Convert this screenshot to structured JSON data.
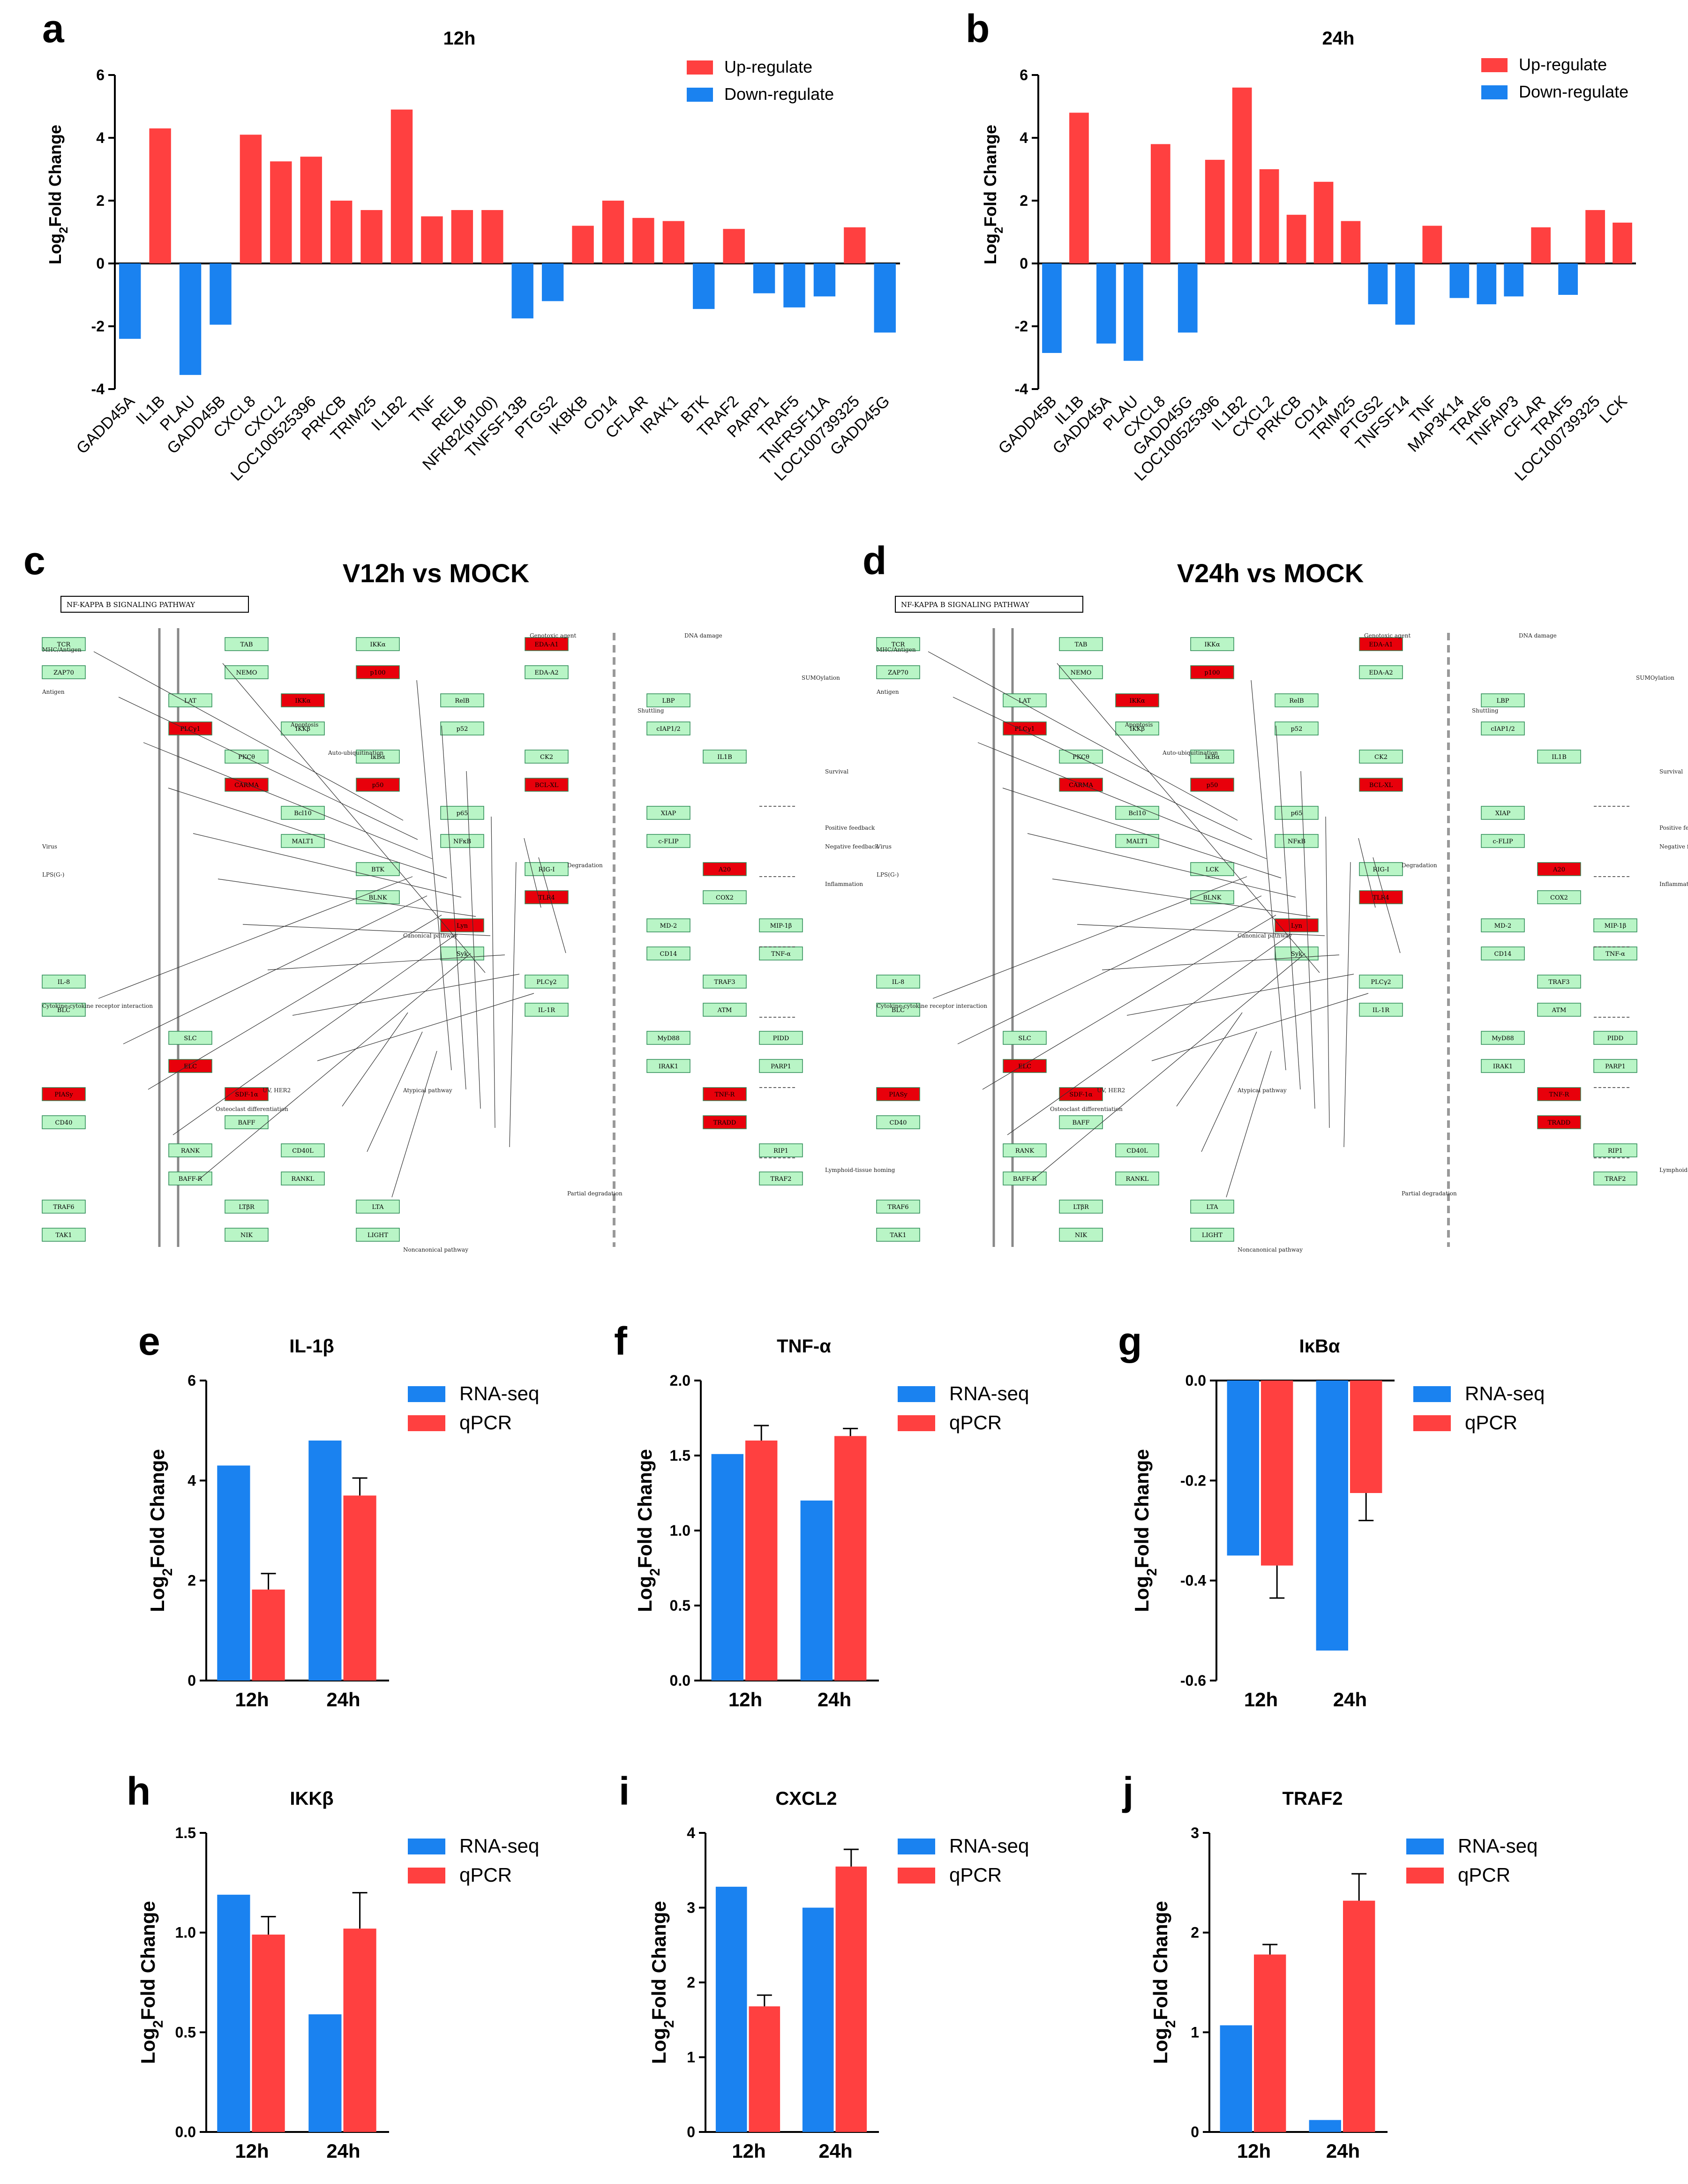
{
  "colors": {
    "up": "#ff4040",
    "down": "#1a82f0",
    "rnaseq": "#1a82f0",
    "qpcr": "#ff4040",
    "node_fill": "#b9f5c6",
    "node_hit": "#e8000b",
    "node_stroke": "#2e8b57"
  },
  "panels": {
    "a": "a",
    "b": "b",
    "c": "c",
    "d": "d",
    "e": "e",
    "f": "f",
    "g": "g",
    "h": "h",
    "i": "i",
    "j": "j"
  },
  "chart_data": [
    {
      "id": "a",
      "type": "bar",
      "title": "12h",
      "ylabel": "Log2Fold Change",
      "ylabel_base": "Log",
      "ylabel_sub": "2",
      "ylabel_rest": "Fold Change",
      "ylim": [
        -4,
        6
      ],
      "yticks": [
        -4,
        -2,
        0,
        2,
        4,
        6
      ],
      "legend": [
        "Up-regulate",
        "Down-regulate"
      ],
      "legend_position": "top-right",
      "categories": [
        "GADD45A",
        "IL1B",
        "PLAU",
        "GADD45B",
        "CXCL8",
        "CXCL2",
        "LOC100525396",
        "PRKCB",
        "TRIM25",
        "IL1B2",
        "TNF",
        "RELB",
        "NFKB2(p100)",
        "TNFSF13B",
        "PTGS2",
        "IKBKB",
        "CD14",
        "CFLAR",
        "IRAK1",
        "BTK",
        "TRAF2",
        "PARP1",
        "TRAF5",
        "TNFRSF11A",
        "LOC100739325",
        "GADD45G"
      ],
      "values": [
        -2.4,
        4.3,
        -3.55,
        -1.95,
        4.1,
        3.25,
        3.4,
        2.0,
        1.7,
        4.9,
        1.5,
        1.7,
        1.7,
        -1.75,
        -1.2,
        1.2,
        2.0,
        1.45,
        1.35,
        -1.45,
        1.1,
        -0.95,
        -1.4,
        -1.05,
        1.15,
        -2.2
      ]
    },
    {
      "id": "b",
      "type": "bar",
      "title": "24h",
      "ylabel": "Log2Fold Change",
      "ylabel_base": "Log",
      "ylabel_sub": "2",
      "ylabel_rest": "Fold Change",
      "ylim": [
        -4,
        6
      ],
      "yticks": [
        -4,
        -2,
        0,
        2,
        4,
        6
      ],
      "legend": [
        "Up-regulate",
        "Down-regulate"
      ],
      "legend_position": "top-right",
      "categories": [
        "GADD45B",
        "IL1B",
        "GADD45A",
        "PLAU",
        "CXCL8",
        "GADD45G",
        "LOC100525396",
        "IL1B2",
        "CXCL2",
        "PRKCB",
        "CD14",
        "TRIM25",
        "PTGS2",
        "TNFSF14",
        "TNF",
        "MAP3K14",
        "TRAF6",
        "TNFAIP3",
        "CFLAR",
        "TRAF5",
        "LOC100739325",
        "LCK"
      ],
      "values": [
        -2.85,
        4.8,
        -2.55,
        -3.1,
        3.8,
        -2.2,
        3.3,
        5.6,
        3.0,
        1.55,
        2.6,
        1.35,
        -1.3,
        -1.95,
        1.2,
        -1.1,
        -1.3,
        -1.05,
        1.15,
        -1.0,
        1.7,
        1.3
      ]
    },
    {
      "id": "e",
      "type": "bar",
      "title": "IL-1β",
      "ylabel": "Log2Fold Change",
      "ylabel_base": "Log",
      "ylabel_sub": "2",
      "ylabel_rest": "Fold Change",
      "ylim": [
        0,
        6
      ],
      "yticks": [
        "0",
        "2",
        "4",
        "6"
      ],
      "ytick_values": [
        0,
        2,
        4,
        6
      ],
      "categories": [
        "12h",
        "24h"
      ],
      "legend_position": "top-right",
      "series": [
        {
          "name": "RNA-seq",
          "values": [
            4.3,
            4.8
          ]
        },
        {
          "name": "qPCR",
          "values": [
            1.82,
            3.7
          ],
          "errors": [
            0.32,
            0.35
          ]
        }
      ]
    },
    {
      "id": "f",
      "type": "bar",
      "title": "TNF-α",
      "ylabel": "Log2Fold Change",
      "ylabel_base": "Log",
      "ylabel_sub": "2",
      "ylabel_rest": "Fold Change",
      "ylim": [
        0,
        2
      ],
      "yticks": [
        "0.0",
        "0.5",
        "1.0",
        "1.5",
        "2.0"
      ],
      "ytick_values": [
        0,
        0.5,
        1,
        1.5,
        2
      ],
      "categories": [
        "12h",
        "24h"
      ],
      "legend_position": "top-right",
      "series": [
        {
          "name": "RNA-seq",
          "values": [
            1.51,
            1.2
          ]
        },
        {
          "name": "qPCR",
          "values": [
            1.6,
            1.63
          ],
          "errors": [
            0.1,
            0.05
          ]
        }
      ]
    },
    {
      "id": "g",
      "type": "bar",
      "title": "IκBα",
      "ylabel": "Log2Fold Change",
      "ylabel_base": "Log",
      "ylabel_sub": "2",
      "ylabel_rest": "Fold Change",
      "ylim": [
        -0.6,
        0
      ],
      "yticks": [
        "0.0",
        "-0.2",
        "-0.4",
        "-0.6"
      ],
      "ytick_values": [
        0,
        -0.2,
        -0.4,
        -0.6
      ],
      "categories": [
        "12h",
        "24h"
      ],
      "legend_position": "top-right",
      "series": [
        {
          "name": "RNA-seq",
          "values": [
            -0.35,
            -0.54
          ]
        },
        {
          "name": "qPCR",
          "values": [
            -0.37,
            -0.225
          ],
          "errors": [
            0.065,
            0.055
          ]
        }
      ]
    },
    {
      "id": "h",
      "type": "bar",
      "title": "IKKβ",
      "ylabel": "Log2Fold Change",
      "ylabel_base": "Log",
      "ylabel_sub": "2",
      "ylabel_rest": "Fold Change",
      "ylim": [
        0,
        1.5
      ],
      "yticks": [
        "0.0",
        "0.5",
        "1.0",
        "1.5"
      ],
      "ytick_values": [
        0,
        0.5,
        1,
        1.5
      ],
      "categories": [
        "12h",
        "24h"
      ],
      "legend_position": "top-right",
      "series": [
        {
          "name": "RNA-seq",
          "values": [
            1.19,
            0.59
          ]
        },
        {
          "name": "qPCR",
          "values": [
            0.99,
            1.02
          ],
          "errors": [
            0.09,
            0.18
          ]
        }
      ]
    },
    {
      "id": "i",
      "type": "bar",
      "title": "CXCL2",
      "ylabel": "Log2Fold Change",
      "ylabel_base": "Log",
      "ylabel_sub": "2",
      "ylabel_rest": "Fold Change",
      "ylim": [
        0,
        4
      ],
      "yticks": [
        "0",
        "1",
        "2",
        "3",
        "4"
      ],
      "ytick_values": [
        0,
        1,
        2,
        3,
        4
      ],
      "categories": [
        "12h",
        "24h"
      ],
      "legend_position": "top-right",
      "series": [
        {
          "name": "RNA-seq",
          "values": [
            3.28,
            3.0
          ]
        },
        {
          "name": "qPCR",
          "values": [
            1.68,
            3.55
          ],
          "errors": [
            0.15,
            0.23
          ]
        }
      ]
    },
    {
      "id": "j",
      "type": "bar",
      "title": "TRAF2",
      "ylabel": "Log2Fold Change",
      "ylabel_base": "Log",
      "ylabel_sub": "2",
      "ylabel_rest": "Fold Change",
      "ylim": [
        0,
        3
      ],
      "yticks": [
        "0",
        "1",
        "2",
        "3"
      ],
      "ytick_values": [
        0,
        1,
        2,
        3
      ],
      "categories": [
        "12h",
        "24h"
      ],
      "legend_position": "top-right",
      "series": [
        {
          "name": "RNA-seq",
          "values": [
            1.07,
            0.12
          ]
        },
        {
          "name": "qPCR",
          "values": [
            1.78,
            2.32
          ],
          "errors": [
            0.1,
            0.27
          ]
        }
      ]
    }
  ],
  "pathways": {
    "c": {
      "heading": "V12h  vs MOCK",
      "pathway_name": "NF-KAPPA B SIGNALING PATHWAY",
      "labels": [
        "MHC/Antigen",
        "Antigen",
        "LPS(G-)",
        "Virus",
        "Cytokine-cytokine receptor interaction",
        "UV, HER2",
        "Genotoxic agent",
        "DNA damage",
        "SUMOylation",
        "Shuttling",
        "Canonical pathway",
        "Atypical pathway",
        "Noncanonical pathway",
        "Degradation",
        "Survival",
        "Positive feedback",
        "Negative feedback",
        "Inflammation",
        "Lymphoid-tissue homing",
        "Apoptosis",
        "Auto-ubiquitination",
        "Osteoclast differentiation",
        "Partial degradation"
      ],
      "node_labels": [
        "TCR",
        "ZAP70",
        "LAT",
        "PLCγ1",
        "PKCθ",
        "CARMA",
        "Bcl10",
        "MALT1",
        "BTK",
        "BLNK",
        "Lyn",
        "Syk",
        "PLCγ2",
        "IL-1R",
        "MyD88",
        "IRAK1",
        "TNF-R",
        "TRADD",
        "RIP1",
        "TRAF2",
        "TRAF6",
        "TAK1",
        "TAB",
        "NEMO",
        "IKKα",
        "IKKβ",
        "IκBα",
        "p50",
        "p65",
        "NFκB",
        "RIG-I",
        "TLR4",
        "MD-2",
        "CD14",
        "TRAF3",
        "ATM",
        "PIDD",
        "PARP1",
        "PIASy",
        "CD40",
        "RANK",
        "BAFF-R",
        "LTβR",
        "NIK",
        "IKKα",
        "p100",
        "RelB",
        "p52",
        "CK2",
        "BCL-XL",
        "XIAP",
        "c-FLIP",
        "A20",
        "COX2",
        "MIP-1β",
        "TNF-α",
        "IL-8",
        "BLC",
        "SLC",
        "ELC",
        "SDF-1α",
        "BAFF",
        "CD40L",
        "RANKL",
        "LTA",
        "LIGHT",
        "EDA-A1",
        "EDA-A2",
        "LBP",
        "cIAP1/2",
        "IL1B"
      ],
      "hit_nodes": [
        "IL1B",
        "TNF",
        "PRKCB",
        "BTK",
        "IRAK1",
        "TRAF2",
        "CXCL8",
        "CXCL2",
        "PTGS2",
        "CD14",
        "TRAF5",
        "NFKB2(p100)",
        "RELB",
        "PLAU",
        "GADD45",
        "IKKβ"
      ]
    },
    "d": {
      "heading": "V24h  vs MOCK",
      "pathway_name": "NF-KAPPA B SIGNALING PATHWAY",
      "labels": [
        "MHC/Antigen",
        "Antigen",
        "LPS(G-)",
        "Virus",
        "Cytokine-cytokine receptor interaction",
        "UV, HER2",
        "Genotoxic agent",
        "DNA damage",
        "SUMOylation",
        "Shuttling",
        "Canonical pathway",
        "Atypical pathway",
        "Noncanonical pathway",
        "Degradation",
        "Survival",
        "Positive feedback",
        "Negative feedback",
        "Inflammation",
        "Lymphoid-tissue homing",
        "Apoptosis",
        "Auto-ubiquitination",
        "Osteoclast differentiation",
        "Partial degradation"
      ],
      "node_labels": [
        "TCR",
        "ZAP70",
        "LAT",
        "PLCγ1",
        "PKCθ",
        "CARMA",
        "Bcl10",
        "MALT1",
        "LCK",
        "BLNK",
        "Lyn",
        "Syk",
        "PLCγ2",
        "IL-1R",
        "MyD88",
        "IRAK1",
        "TNF-R",
        "TRADD",
        "RIP1",
        "TRAF2",
        "TRAF6",
        "TAK1",
        "TAB",
        "NEMO",
        "IKKα",
        "IKKβ",
        "IκBα",
        "p50",
        "p65",
        "NFκB",
        "RIG-I",
        "TLR4",
        "MD-2",
        "CD14",
        "TRAF3",
        "ATM",
        "PIDD",
        "PARP1",
        "PIASy",
        "CD40",
        "RANK",
        "BAFF-R",
        "LTβR",
        "NIK",
        "IKKα",
        "p100",
        "RelB",
        "p52",
        "CK2",
        "BCL-XL",
        "XIAP",
        "c-FLIP",
        "A20",
        "COX2",
        "MIP-1β",
        "TNF-α",
        "IL-8",
        "BLC",
        "SLC",
        "ELC",
        "SDF-1α",
        "BAFF",
        "CD40L",
        "RANKL",
        "LTA",
        "LIGHT",
        "EDA-A1",
        "EDA-A2",
        "LBP",
        "cIAP1/2",
        "IL1B"
      ],
      "hit_nodes": [
        "IL1B",
        "TNF",
        "PRKCB",
        "LCK",
        "TRAF6",
        "CXCL8",
        "CXCL2",
        "PTGS2",
        "CD14",
        "TRAF5",
        "TNFAIP3",
        "MAP3K14",
        "CFLAR",
        "GADD45"
      ]
    }
  }
}
